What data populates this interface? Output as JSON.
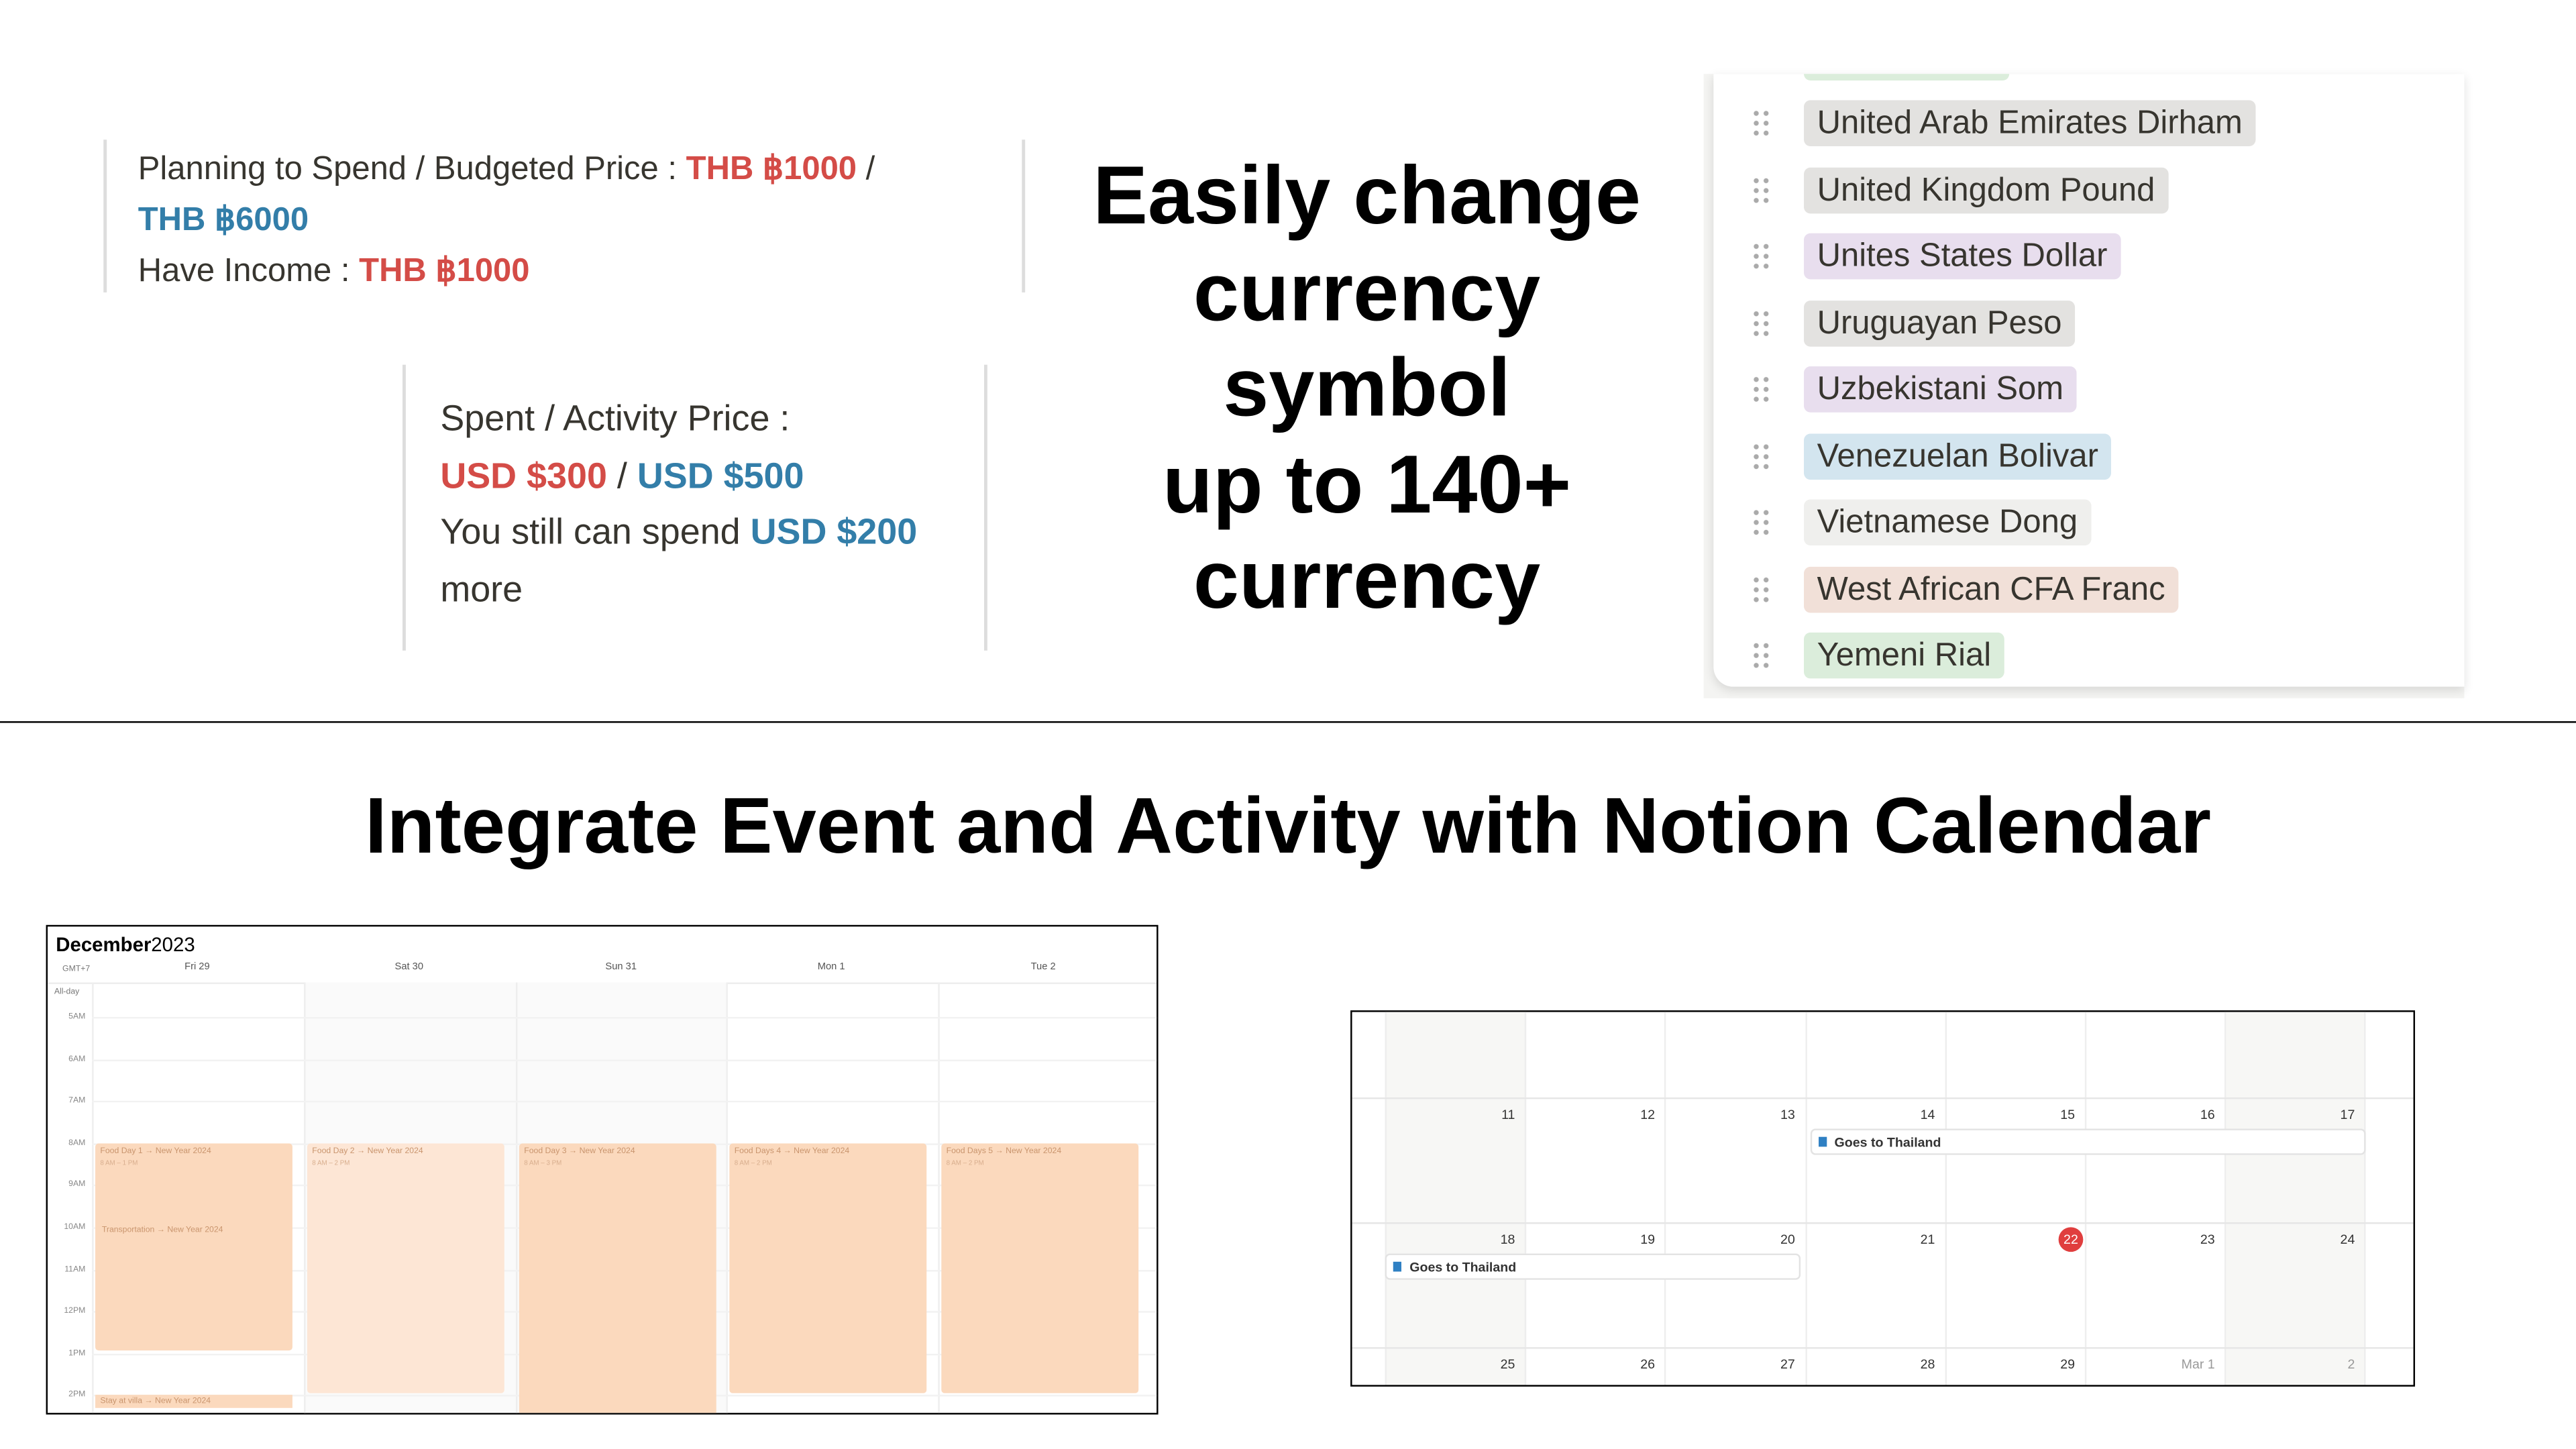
{
  "budget_card": {
    "line1_label": "Planning to Spend / Budgeted Price : ",
    "spent_amount": "THB ฿1000",
    "separator": " / ",
    "budget_amount": "THB ฿6000",
    "line2_label": "Have Income : ",
    "income_amount": "THB ฿1000"
  },
  "activity_card": {
    "label": "Spent / Activity Price :",
    "spent": "USD $300",
    "separator": " / ",
    "price": "USD $500",
    "remaining_prefix": "You still can spend ",
    "remaining": "USD $200",
    "suffix": " more"
  },
  "headline": [
    "Easily change",
    "currency",
    "symbol",
    "up to 140+",
    "currency"
  ],
  "currency_list": [
    {
      "name": "United Arab Emirates Dirham",
      "color": "#e3e2e0"
    },
    {
      "name": "United Kingdom Pound",
      "color": "#e3e2e0"
    },
    {
      "name": "Unites States Dollar",
      "color": "#e8deee"
    },
    {
      "name": "Uruguayan Peso",
      "color": "#e3e2e0"
    },
    {
      "name": "Uzbekistani Som",
      "color": "#e8deee"
    },
    {
      "name": "Venezuelan Bolivar",
      "color": "#d3e5ef"
    },
    {
      "name": "Vietnamese Dong",
      "color": "#efefed"
    },
    {
      "name": "West African CFA Franc",
      "color": "#f1e0d8"
    },
    {
      "name": "Yemeni Rial",
      "color": "#dbeddb"
    }
  ],
  "section_title": "Integrate Event and Activity with Notion Calendar",
  "week_calendar": {
    "month": "December",
    "year": "2023",
    "timezone": "GMT+7",
    "all_day": "All-day",
    "days": [
      "Fri 29",
      "Sat 30",
      "Sun 31",
      "Mon 1",
      "Tue 2"
    ],
    "hours": [
      "5AM",
      "6AM",
      "7AM",
      "8AM",
      "9AM",
      "10AM",
      "11AM",
      "12PM",
      "1PM",
      "2PM"
    ],
    "events": [
      {
        "title": "Food Day 1 → New Year 2024",
        "time": "8 AM – 1 PM"
      },
      {
        "title": "Food Day 2 → New Year 2024",
        "time": "8 AM – 2 PM"
      },
      {
        "title": "Food Day 3 → New Year 2024",
        "time": "8 AM – 3 PM"
      },
      {
        "title": "Food Days 4 → New Year 2024",
        "time": "8 AM – 2 PM"
      },
      {
        "title": "Food Days 5 → New Year 2024",
        "time": "8 AM – 2 PM"
      }
    ],
    "extra_events": [
      "Transportation → New Year 2024",
      "Stay at villa → New Year 2024"
    ]
  },
  "month_calendar": {
    "weeks": [
      [
        "11",
        "12",
        "13",
        "14",
        "15",
        "16",
        "17"
      ],
      [
        "18",
        "19",
        "20",
        "21",
        "22",
        "23",
        "24"
      ],
      [
        "25",
        "26",
        "27",
        "28",
        "29",
        "Mar 1",
        "2"
      ]
    ],
    "events": [
      "Goes to Thailand",
      "Goes to Thailand"
    ],
    "today": "22"
  }
}
